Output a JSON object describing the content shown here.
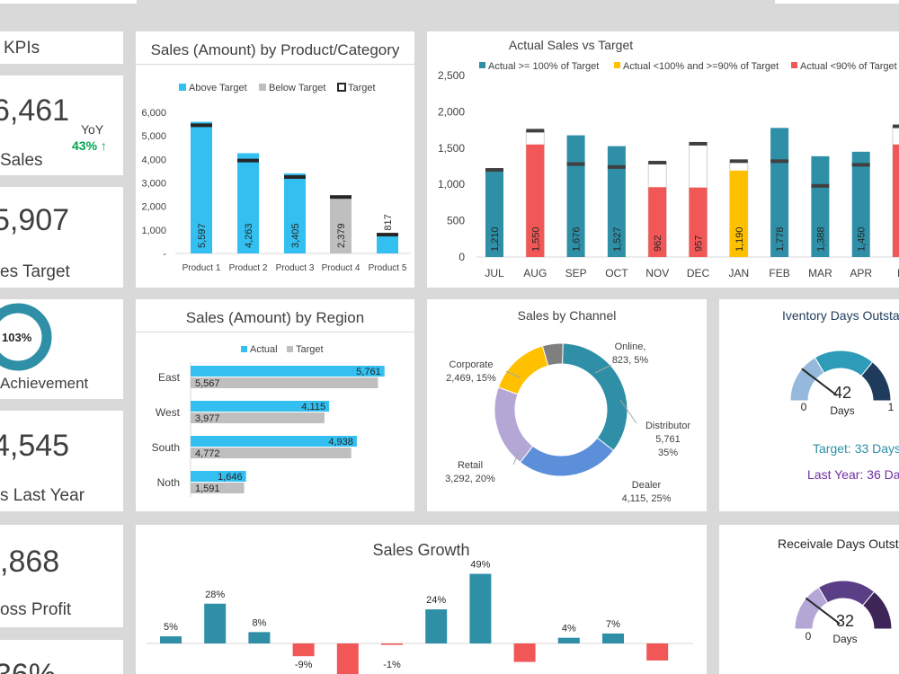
{
  "kpis": {
    "header": "KPIs",
    "sales_value": "6,461",
    "sales_label": "Sales",
    "yoy_label": "YoY",
    "yoy_value": "43% ↑",
    "target_value": "5,907",
    "target_label": "es Target",
    "achievement_value": "103%",
    "achievement_label": "Achievement",
    "last_year_value": "4,545",
    "last_year_label": "s Last Year",
    "gross_profit_value": ",868",
    "gross_profit_label": "oss Profit",
    "last_value": "36%",
    "colors": {
      "accent": "#2e8fa6",
      "positive": "#00a651"
    }
  },
  "product_chart": {
    "title": "Sales (Amount) by Product/Category",
    "legend": [
      "Above Target",
      "Below Target",
      "Target"
    ],
    "colors": {
      "above": "#33c0f0",
      "below": "#bfbfbf",
      "target": "#262626"
    },
    "chart_data": {
      "type": "bar",
      "categories": [
        "Product 1",
        "Product 2",
        "Product 3",
        "Product 4",
        "Product 5"
      ],
      "values": [
        5597,
        4263,
        3405,
        2379,
        817
      ],
      "value_labels": [
        "5,597",
        "4,263",
        "3,405",
        "2,379",
        "817"
      ],
      "targets": [
        5450,
        3950,
        3250,
        2400,
        800
      ],
      "above_target": [
        true,
        true,
        true,
        false,
        true
      ],
      "yticks": [
        "6,000",
        "5,000",
        "4,000",
        "3,000",
        "2,000",
        "1,000",
        "-"
      ],
      "ylim": [
        0,
        6000
      ]
    }
  },
  "target_chart": {
    "title": "Actual Sales vs Target",
    "legend": [
      "Actual >= 100% of Target",
      "Actual <100% and >=90% of Target",
      "Actual <90% of Target"
    ],
    "colors": {
      "good": "#2e8fa6",
      "mid": "#ffc000",
      "bad": "#f25757",
      "target": "#404040"
    },
    "chart_data": {
      "type": "bar",
      "categories": [
        "JUL",
        "AUG",
        "SEP",
        "OCT",
        "NOV",
        "DEC",
        "JAN",
        "FEB",
        "MAR",
        "APR",
        "M"
      ],
      "values": [
        1210,
        1550,
        1676,
        1527,
        962,
        957,
        1190,
        1778,
        1388,
        1450,
        1550
      ],
      "value_labels": [
        "1,210",
        "1,550",
        "1,676",
        "1,527",
        "962",
        "957",
        "1,190",
        "1,778",
        "1,388",
        "1,450",
        ""
      ],
      "targets": [
        1200,
        1740,
        1280,
        1240,
        1300,
        1560,
        1320,
        1320,
        980,
        1270,
        1800
      ],
      "status": [
        "good",
        "bad",
        "good",
        "good",
        "bad",
        "bad",
        "mid",
        "good",
        "good",
        "good",
        "bad"
      ],
      "yticks": [
        "2,500",
        "2,000",
        "1,500",
        "1,000",
        "500",
        "0"
      ],
      "ylim": [
        0,
        2500
      ]
    }
  },
  "region_chart": {
    "title": "Sales (Amount) by Region",
    "legend": [
      "Actual",
      "Target"
    ],
    "colors": {
      "actual": "#33c0f0",
      "target": "#bfbfbf"
    },
    "chart_data": {
      "type": "bar",
      "categories": [
        "East",
        "West",
        "South",
        "Noth"
      ],
      "actual": [
        5761,
        4115,
        4938,
        1646
      ],
      "target": [
        5567,
        3977,
        4772,
        1591
      ],
      "actual_labels": [
        "5,761",
        "4,115",
        "4,938",
        "1,646"
      ],
      "target_labels": [
        "5,567",
        "3,977",
        "4,772",
        "1,591"
      ],
      "xlim": [
        0,
        6000
      ]
    }
  },
  "channel_chart": {
    "title": "Sales by Channel",
    "chart_data": {
      "type": "pie",
      "labels": [
        "Online",
        "Distributor",
        "Dealer",
        "Retail",
        "Corporate"
      ],
      "values": [
        823,
        5761,
        4115,
        3292,
        2469
      ],
      "label_lines": [
        [
          "Online,",
          "823, 5%"
        ],
        [
          "Distributor",
          "5,761",
          "35%"
        ],
        [
          "Dealer",
          "4,115, 25%"
        ],
        [
          "Retail",
          "3,292, 20%"
        ],
        [
          "Corporate",
          "2,469, 15%"
        ]
      ],
      "colors": [
        "#7f7f7f",
        "#2e8fa6",
        "#5b8fd9",
        "#b4a7d6",
        "#ffc000"
      ]
    }
  },
  "inventory_gauge": {
    "title": "Iventory Days Outsta",
    "value": "42",
    "value_num": 42,
    "unit": "Days",
    "min": "0",
    "max_partial": "1",
    "target_text": "Target: 33 Days",
    "last_year_text": "Last Year: 36 Day",
    "colors": {
      "light": "#95b9dc",
      "mid": "#2e9bb8",
      "dark": "#1f3b5c",
      "target": "#2e8fa6",
      "last_year": "#7030a0"
    }
  },
  "receivable_gauge": {
    "title": "Receivale Days Outsta",
    "value": "32",
    "value_num": 32,
    "unit": "Days",
    "min": "0",
    "colors": {
      "light": "#b4a7d6",
      "mid": "#5b3f86",
      "dark": "#3d2558"
    }
  },
  "growth_chart": {
    "title": "Sales Growth",
    "colors": {
      "positive": "#2e8fa6",
      "negative": "#f25757"
    },
    "chart_data": {
      "type": "bar",
      "values": [
        5,
        28,
        8,
        -9,
        -25,
        -1,
        24,
        49,
        -13,
        4,
        7,
        -12
      ],
      "value_labels": [
        "5%",
        "28%",
        "8%",
        "-9%",
        "",
        "-1%",
        "24%",
        "49%",
        "",
        "4%",
        "7%",
        ""
      ],
      "ylim": [
        -40,
        60
      ]
    }
  }
}
